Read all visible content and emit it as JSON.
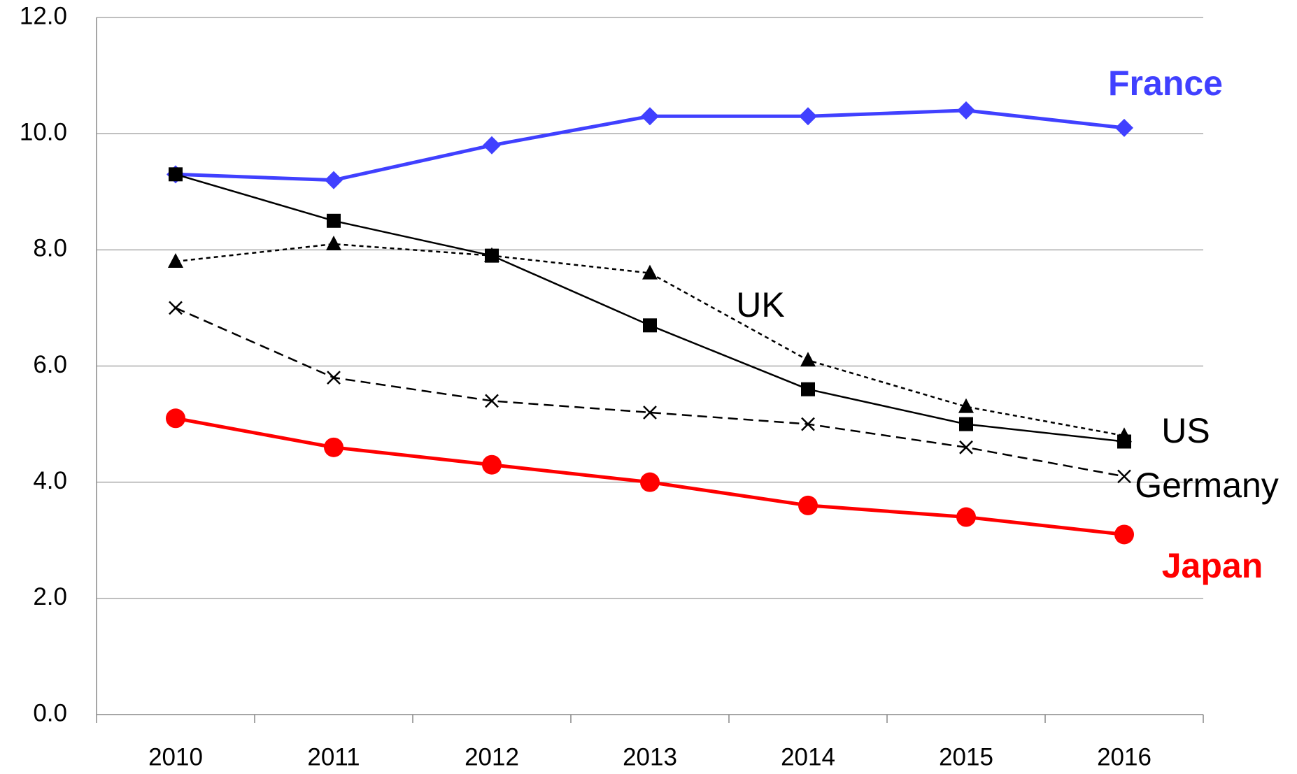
{
  "chart_data": {
    "type": "line",
    "categories": [
      "2010",
      "2011",
      "2012",
      "2013",
      "2014",
      "2015",
      "2016"
    ],
    "series": [
      {
        "name": "France",
        "color": "#4040ff",
        "marker": "diamond",
        "dash": "solid",
        "bold": true,
        "values": [
          9.3,
          9.2,
          9.8,
          10.3,
          10.3,
          10.4,
          10.1
        ]
      },
      {
        "name": "UK",
        "color": "#000000",
        "marker": "triangle",
        "dash": "dotted",
        "bold": false,
        "values": [
          7.8,
          8.1,
          7.9,
          7.6,
          6.1,
          5.3,
          4.8
        ]
      },
      {
        "name": "US",
        "color": "#000000",
        "marker": "square",
        "dash": "solid",
        "bold": false,
        "values": [
          9.3,
          8.5,
          7.9,
          6.7,
          5.6,
          5.0,
          4.7
        ]
      },
      {
        "name": "Germany",
        "color": "#000000",
        "marker": "x",
        "dash": "dashed",
        "bold": false,
        "values": [
          7.0,
          5.8,
          5.4,
          5.2,
          5.0,
          4.6,
          4.1
        ]
      },
      {
        "name": "Japan",
        "color": "#ff0000",
        "marker": "circle",
        "dash": "solid",
        "bold": true,
        "values": [
          5.1,
          4.6,
          4.3,
          4.0,
          3.6,
          3.4,
          3.1
        ]
      }
    ],
    "ylim": [
      0,
      12
    ],
    "yticks": [
      {
        "value": 0,
        "label": "0.0"
      },
      {
        "value": 2,
        "label": "2.0"
      },
      {
        "value": 4,
        "label": "4.0"
      },
      {
        "value": 6,
        "label": "6.0"
      },
      {
        "value": 8,
        "label": "8.0"
      },
      {
        "value": 10,
        "label": "10.0"
      },
      {
        "value": 12,
        "label": "12.0"
      }
    ],
    "grid": true
  }
}
